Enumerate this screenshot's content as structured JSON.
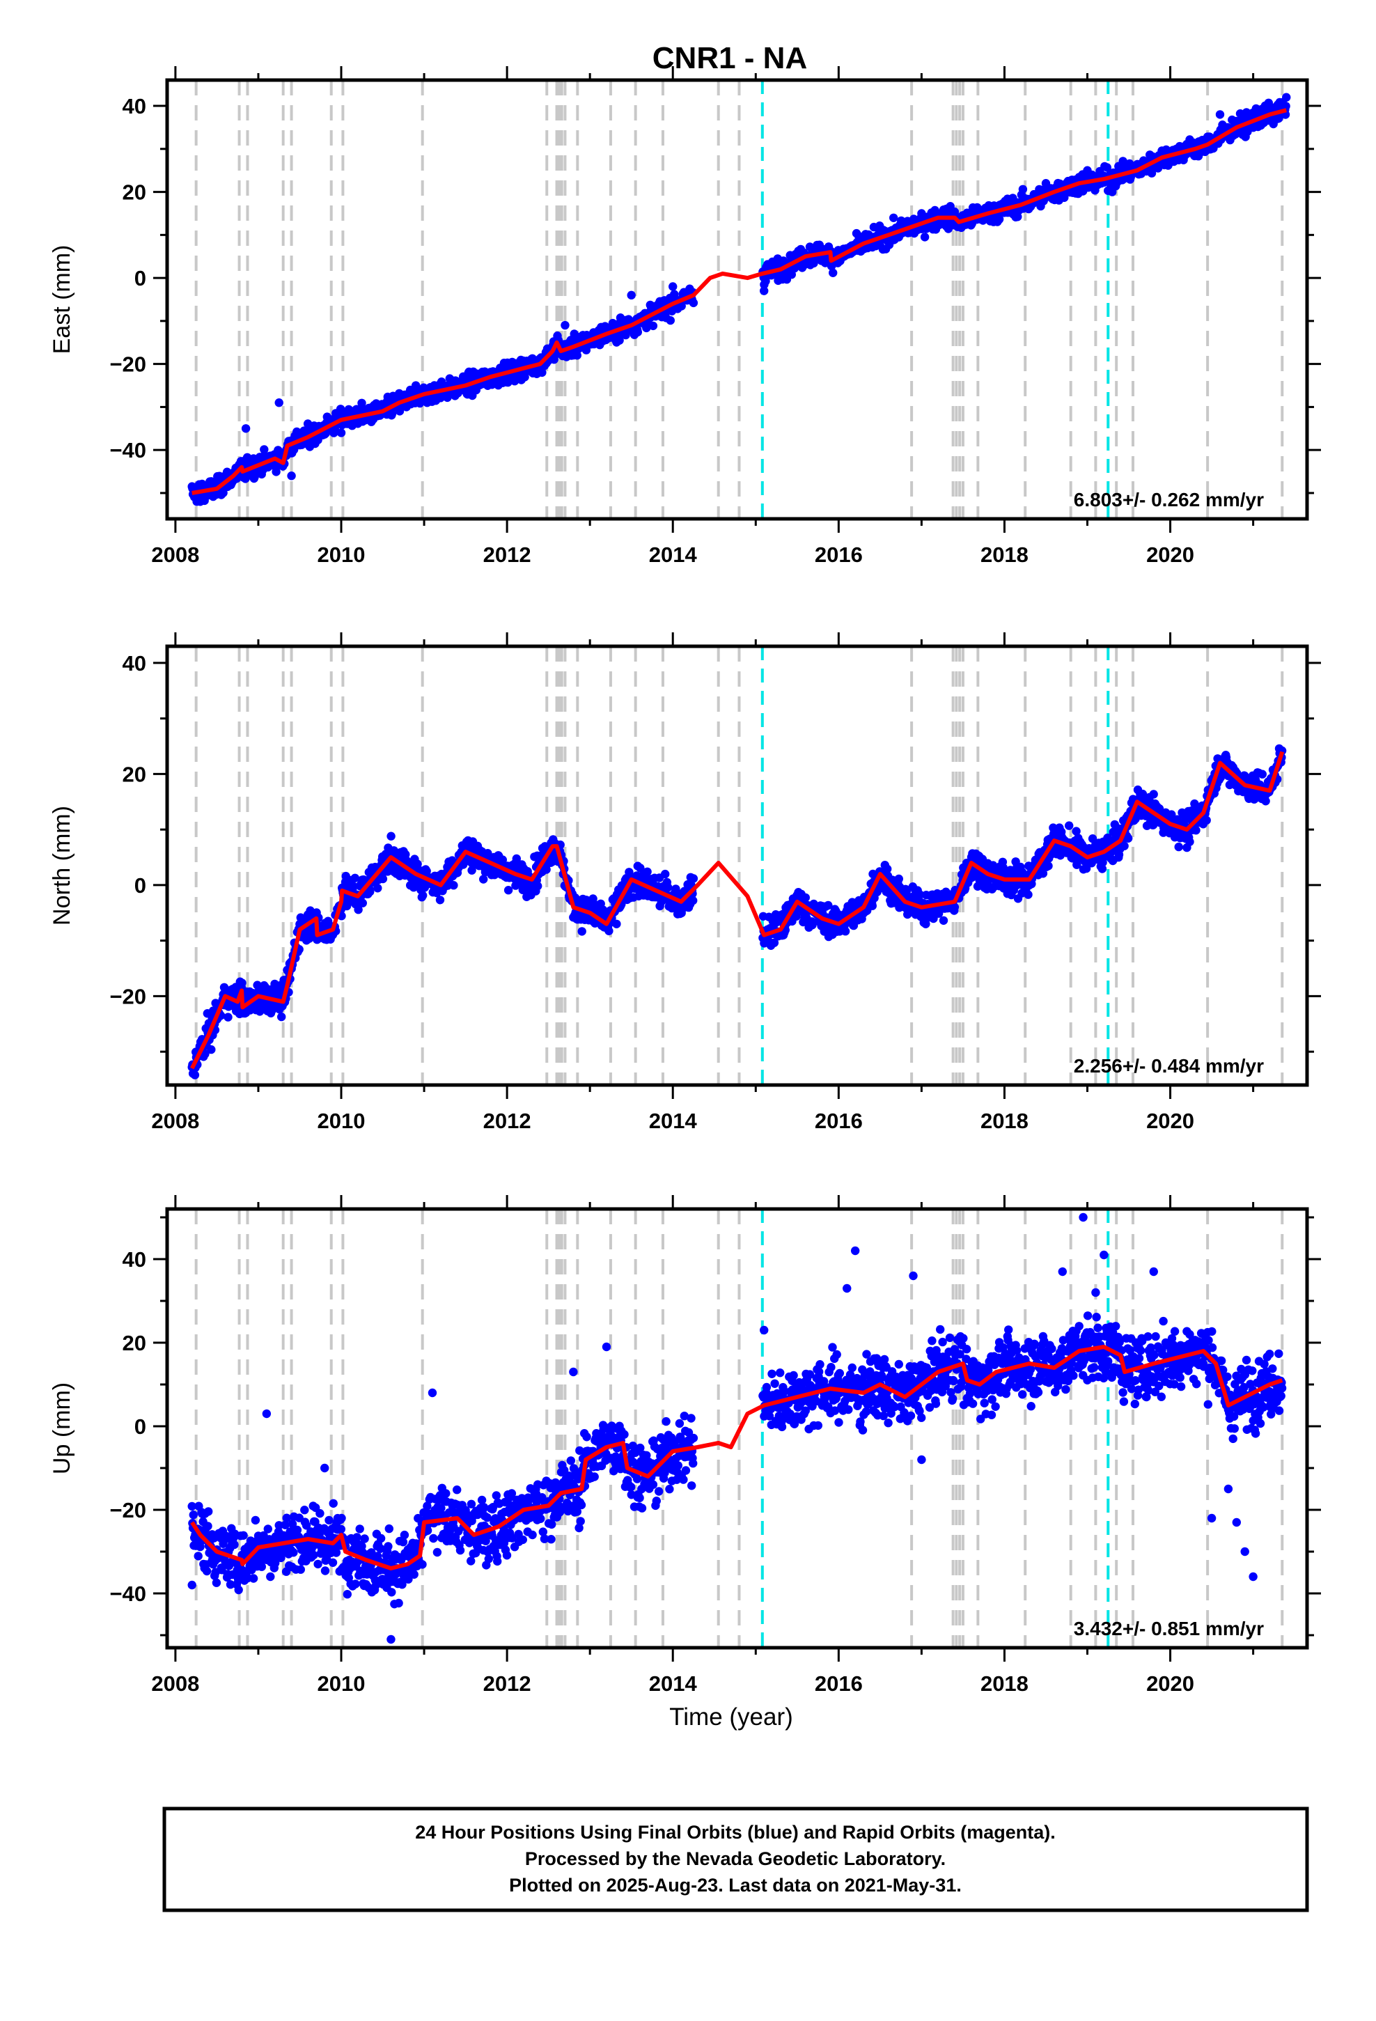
{
  "title": "CNR1 - NA",
  "xlabel": "Time (year)",
  "colors": {
    "final_orbits": "#0000ff",
    "model": "#ff0000",
    "antenna_change": "#00e5e5",
    "event": "#c8c8c8",
    "axes": "#000000"
  },
  "footer": {
    "line1": "24 Hour Positions Using Final Orbits (blue) and Rapid Orbits (magenta).",
    "line2": "Processed by the Nevada Geodetic Laboratory.",
    "line3": "Plotted on 2025-Aug-23. Last data on 2021-May-31."
  },
  "chart_data": [
    {
      "type": "scatter",
      "component": "east",
      "ylabel": "East (mm)",
      "rate_label": "6.803+/- 0.262 mm/yr",
      "xlim": [
        2007.9,
        2021.65
      ],
      "ylim": [
        -56,
        46
      ],
      "x_ticks": [
        2008,
        2010,
        2012,
        2014,
        2016,
        2018,
        2020
      ],
      "y_ticks": [
        -40,
        -20,
        0,
        20,
        40
      ],
      "grid": false,
      "data_gap": [
        2014.25,
        2015.08
      ],
      "model_x": [
        2008.2,
        2008.5,
        2008.7,
        2008.8,
        2008.81,
        2009.2,
        2009.3,
        2009.35,
        2009.6,
        2009.9,
        2010.0,
        2010.5,
        2010.7,
        2011.0,
        2011.5,
        2011.8,
        2012.0,
        2012.4,
        2012.55,
        2012.6,
        2012.65,
        2012.8,
        2013.2,
        2013.5,
        2013.8,
        2014.0,
        2014.25,
        2014.45,
        2014.6,
        2014.9,
        2015.08,
        2015.3,
        2015.6,
        2015.9,
        2015.91,
        2016.3,
        2016.6,
        2016.9,
        2017.2,
        2017.4,
        2017.45,
        2017.8,
        2018.2,
        2018.6,
        2018.9,
        2019.2,
        2019.6,
        2019.9,
        2020.3,
        2020.45,
        2020.8,
        2021.2,
        2021.4
      ],
      "model_y": [
        -50,
        -49,
        -46,
        -44,
        -45,
        -42,
        -43,
        -39,
        -37,
        -34,
        -33,
        -31,
        -29,
        -27,
        -25,
        -23,
        -22,
        -20,
        -17,
        -15,
        -17,
        -16,
        -13,
        -11,
        -8,
        -6,
        -4,
        0,
        1,
        0,
        1,
        2,
        5,
        6,
        4,
        8,
        10,
        12,
        14,
        14,
        13,
        15,
        17,
        20,
        22,
        23,
        25,
        28,
        30,
        31,
        35,
        38,
        39
      ],
      "samples": [
        [
          2008.3,
          -52
        ],
        [
          2008.6,
          -46
        ],
        [
          2008.85,
          -35
        ],
        [
          2009.0,
          -44
        ],
        [
          2009.2,
          -41
        ],
        [
          2009.25,
          -29
        ],
        [
          2009.4,
          -46
        ],
        [
          2010.0,
          -36
        ],
        [
          2010.9,
          -25
        ],
        [
          2012.7,
          -11
        ],
        [
          2013.5,
          -4
        ],
        [
          2014.0,
          -2
        ],
        [
          2015.1,
          -3
        ],
        [
          2016.0,
          5
        ],
        [
          2017.0,
          15
        ],
        [
          2017.3,
          12
        ],
        [
          2018.5,
          22
        ],
        [
          2019.0,
          25
        ],
        [
          2019.3,
          20
        ],
        [
          2020.6,
          38
        ],
        [
          2021.4,
          42
        ]
      ]
    },
    {
      "type": "scatter",
      "component": "north",
      "ylabel": "North (mm)",
      "rate_label": "2.256+/- 0.484 mm/yr",
      "xlim": [
        2007.9,
        2021.65
      ],
      "ylim": [
        -36,
        43
      ],
      "x_ticks": [
        2008,
        2010,
        2012,
        2014,
        2016,
        2018,
        2020
      ],
      "y_ticks": [
        -20,
        0,
        20,
        40
      ],
      "grid": false,
      "data_gap": [
        2014.25,
        2015.08
      ],
      "model_x": [
        2008.2,
        2008.4,
        2008.6,
        2008.75,
        2008.8,
        2008.81,
        2009.0,
        2009.3,
        2009.35,
        2009.5,
        2009.7,
        2009.71,
        2009.9,
        2010.0,
        2010.01,
        2010.2,
        2010.6,
        2010.9,
        2011.2,
        2011.5,
        2011.8,
        2012.1,
        2012.3,
        2012.55,
        2012.6,
        2012.8,
        2013.0,
        2013.2,
        2013.5,
        2013.8,
        2014.1,
        2014.3,
        2014.55,
        2014.9,
        2015.1,
        2015.3,
        2015.5,
        2015.8,
        2016.0,
        2016.3,
        2016.5,
        2016.8,
        2017.0,
        2017.4,
        2017.6,
        2017.8,
        2018.0,
        2018.3,
        2018.6,
        2018.8,
        2019.0,
        2019.2,
        2019.4,
        2019.6,
        2019.8,
        2020.0,
        2020.2,
        2020.4,
        2020.6,
        2020.9,
        2021.2,
        2021.35
      ],
      "model_y": [
        -33,
        -27,
        -20,
        -21,
        -19,
        -22,
        -20,
        -21,
        -18,
        -8,
        -6,
        -9,
        -8,
        -3,
        -1,
        -2,
        5,
        2,
        0,
        6,
        4,
        2,
        1,
        7,
        7,
        -4,
        -5,
        -7,
        1,
        -1,
        -3,
        0,
        4,
        -2,
        -9,
        -8,
        -3,
        -6,
        -7,
        -4,
        2,
        -3,
        -4,
        -3,
        4,
        2,
        1,
        1,
        8,
        7,
        5,
        6,
        8,
        15,
        13,
        11,
        10,
        13,
        22,
        18,
        17,
        24
      ]
    },
    {
      "type": "scatter",
      "component": "up",
      "ylabel": "Up (mm)",
      "rate_label": "3.432+/- 0.851 mm/yr",
      "xlim": [
        2007.9,
        2021.65
      ],
      "ylim": [
        -53,
        52
      ],
      "x_ticks": [
        2008,
        2010,
        2012,
        2014,
        2016,
        2018,
        2020
      ],
      "y_ticks": [
        -40,
        -20,
        0,
        20,
        40
      ],
      "grid": false,
      "data_gap": [
        2014.25,
        2015.08
      ],
      "model_x": [
        2008.2,
        2008.3,
        2008.5,
        2008.8,
        2008.81,
        2009.0,
        2009.3,
        2009.6,
        2009.9,
        2010.0,
        2010.05,
        2010.3,
        2010.6,
        2010.8,
        2010.95,
        2011.0,
        2011.4,
        2011.6,
        2011.9,
        2012.2,
        2012.5,
        2012.55,
        2012.6,
        2012.65,
        2012.9,
        2012.95,
        2013.2,
        2013.4,
        2013.45,
        2013.7,
        2014.0,
        2014.3,
        2014.55,
        2014.7,
        2014.9,
        2015.1,
        2015.5,
        2015.9,
        2016.3,
        2016.5,
        2016.8,
        2017.2,
        2017.5,
        2017.55,
        2017.7,
        2017.9,
        2018.3,
        2018.6,
        2018.9,
        2019.2,
        2019.4,
        2019.45,
        2019.8,
        2020.2,
        2020.4,
        2020.55,
        2020.7,
        2020.9,
        2021.2,
        2021.35
      ],
      "model_y": [
        -23,
        -26,
        -30,
        -32,
        -33,
        -29,
        -28,
        -27,
        -28,
        -26,
        -30,
        -32,
        -34,
        -33,
        -31,
        -23,
        -22,
        -26,
        -24,
        -20,
        -19,
        -18,
        -17,
        -16,
        -15,
        -8,
        -5,
        -4,
        -10,
        -12,
        -6,
        -5,
        -4,
        -5,
        3,
        5,
        7,
        9,
        8,
        10,
        7,
        13,
        15,
        11,
        10,
        13,
        15,
        14,
        18,
        19,
        17,
        13,
        15,
        17,
        18,
        15,
        5,
        7,
        10,
        11
      ],
      "samples": [
        [
          2008.2,
          -38
        ],
        [
          2009.1,
          3
        ],
        [
          2009.8,
          -10
        ],
        [
          2010.6,
          -51
        ],
        [
          2011.1,
          8
        ],
        [
          2012.8,
          13
        ],
        [
          2013.2,
          19
        ],
        [
          2015.1,
          23
        ],
        [
          2016.1,
          33
        ],
        [
          2016.2,
          42
        ],
        [
          2016.9,
          36
        ],
        [
          2017.0,
          -8
        ],
        [
          2018.7,
          37
        ],
        [
          2018.95,
          50
        ],
        [
          2019.2,
          41
        ],
        [
          2019.1,
          32
        ],
        [
          2019.8,
          37
        ],
        [
          2020.5,
          -22
        ],
        [
          2020.7,
          -15
        ],
        [
          2020.8,
          -23
        ],
        [
          2020.9,
          -30
        ],
        [
          2021.0,
          -36
        ]
      ]
    }
  ],
  "event_lines": [
    2008.25,
    2008.77,
    2008.87,
    2009.3,
    2009.4,
    2009.88,
    2010.02,
    2010.98,
    2012.48,
    2012.6,
    2012.63,
    2012.66,
    2012.7,
    2012.85,
    2013.25,
    2013.55,
    2013.88,
    2014.55,
    2014.8,
    2016.88,
    2017.38,
    2017.42,
    2017.46,
    2017.5,
    2017.68,
    2018.25,
    2018.8,
    2019.1,
    2019.35,
    2019.55,
    2020.45,
    2021.35
  ],
  "antenna_lines": [
    2015.08,
    2019.25
  ]
}
